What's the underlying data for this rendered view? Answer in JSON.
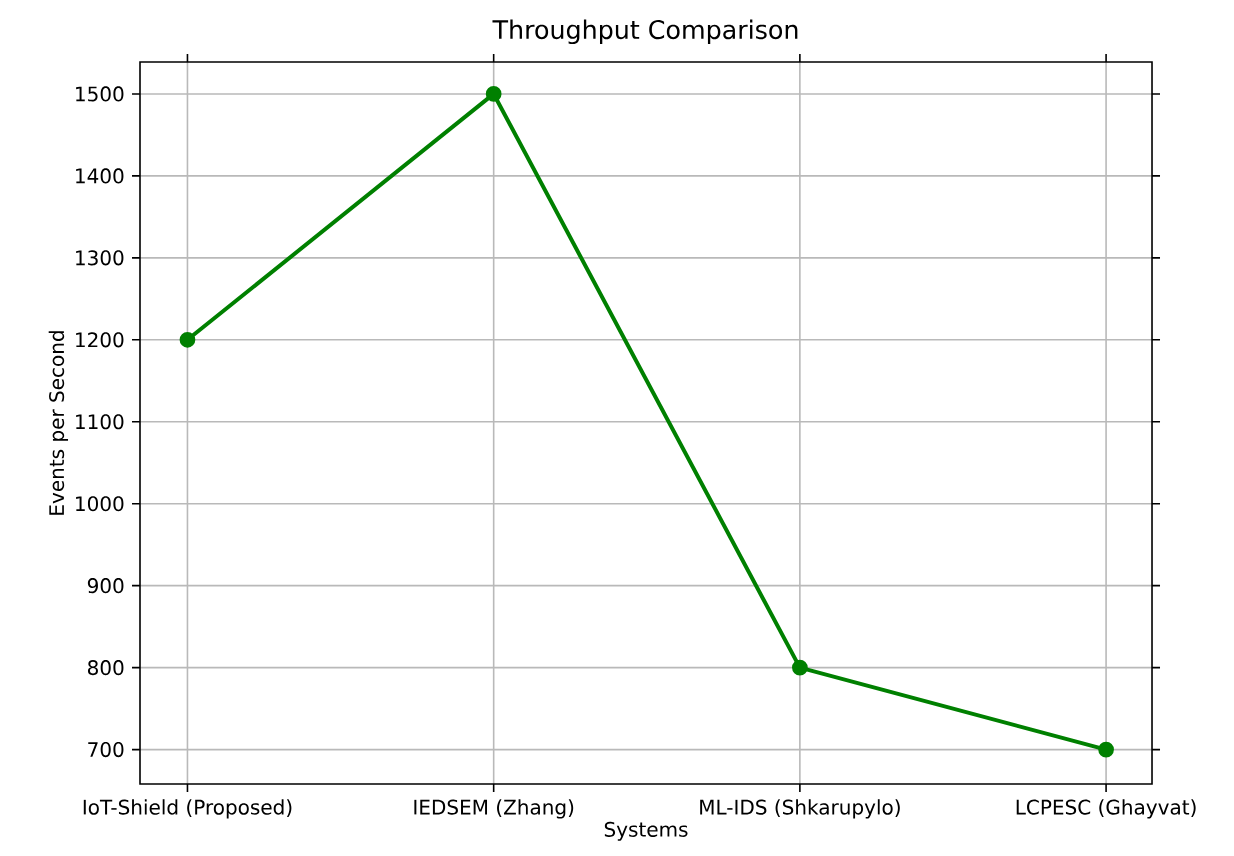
{
  "chart_data": {
    "type": "line",
    "title": "Throughput Comparison",
    "xlabel": "Systems",
    "ylabel": "Events per Second",
    "categories": [
      "IoT-Shield (Proposed)",
      "IEDSEM (Zhang)",
      "ML-IDS (Shkarupylo)",
      "LCPESC (Ghayvat)"
    ],
    "series": [
      {
        "color": "#008000",
        "values": [
          1200,
          1500,
          800,
          700
        ]
      }
    ],
    "ylim": [
      658,
      1539
    ],
    "yticks": [
      700,
      800,
      900,
      1000,
      1100,
      1200,
      1300,
      1400,
      1500
    ],
    "grid": true,
    "marker": "circle",
    "line_style": "solid"
  }
}
